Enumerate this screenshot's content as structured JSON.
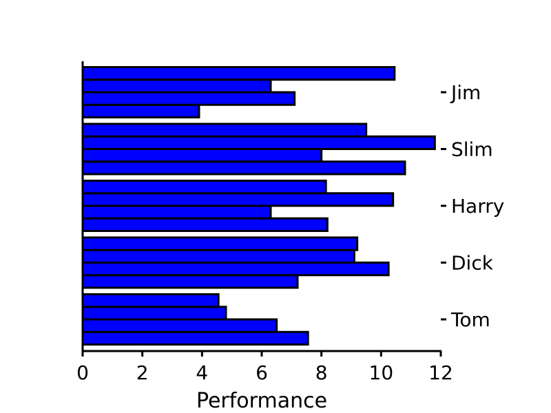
{
  "chart_data": {
    "type": "bar",
    "orientation": "horizontal",
    "title": "",
    "xlabel": "Performance",
    "ylabel": "",
    "xlim": [
      0,
      12
    ],
    "xticks": [
      "0",
      "2",
      "4",
      "6",
      "8",
      "10",
      "12"
    ],
    "categories": [
      "Tom",
      "Dick",
      "Harry",
      "Slim",
      "Jim"
    ],
    "category_label_position": "right",
    "bar_color": "#0000ff",
    "edge_color": "#000000",
    "grid": false,
    "groups": [
      {
        "category": "Tom",
        "values": [
          7.55,
          6.5,
          4.8,
          4.55
        ]
      },
      {
        "category": "Dick",
        "values": [
          7.2,
          10.25,
          9.1,
          9.2
        ]
      },
      {
        "category": "Harry",
        "values": [
          8.2,
          6.3,
          10.4,
          8.15
        ]
      },
      {
        "category": "Slim",
        "values": [
          10.8,
          8.0,
          11.8,
          9.5
        ]
      },
      {
        "category": "Jim",
        "values": [
          3.9,
          7.1,
          6.3,
          10.45
        ]
      }
    ]
  }
}
